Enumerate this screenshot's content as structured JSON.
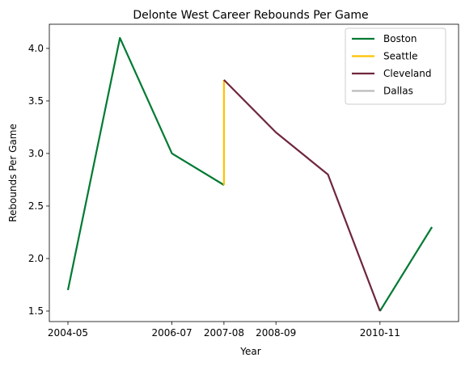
{
  "chart_data": {
    "type": "line",
    "title": "Delonte West Career Rebounds Per Game",
    "xlabel": "Year",
    "ylabel": "Rebounds Per Game",
    "x_categories": [
      "2004-05",
      "2005-06",
      "2006-07",
      "2007-08",
      "2008-09",
      "2009-10",
      "2010-11",
      "2011-12"
    ],
    "x_ticks": [
      "2004-05",
      "2006-07",
      "2007-08",
      "2008-09",
      "2010-11"
    ],
    "ylim": [
      1.4,
      4.23
    ],
    "y_ticks": [
      1.5,
      2.0,
      2.5,
      3.0,
      3.5,
      4.0
    ],
    "y_tick_labels": [
      "1.5",
      "2.0",
      "2.5",
      "3.0",
      "3.5",
      "4.0"
    ],
    "legend_position": "top-right",
    "grid": false,
    "series": [
      {
        "name": "Boston",
        "color": "#007a33",
        "segments": [
          [
            [
              "2004-05",
              1.7
            ],
            [
              "2005-06",
              4.1
            ],
            [
              "2006-07",
              3.0
            ],
            [
              "2007-08",
              2.7
            ]
          ],
          [
            [
              "2010-11",
              1.5
            ],
            [
              "2011-12",
              2.3
            ]
          ]
        ]
      },
      {
        "name": "Seattle",
        "color": "#ffc200",
        "segments": [
          [
            [
              "2007-08",
              2.7
            ],
            [
              "2007-08",
              3.7
            ]
          ]
        ]
      },
      {
        "name": "Cleveland",
        "color": "#6f263d",
        "segments": [
          [
            [
              "2007-08",
              3.7
            ],
            [
              "2008-09",
              3.2
            ],
            [
              "2009-10",
              2.8
            ],
            [
              "2010-11",
              1.5
            ]
          ]
        ]
      },
      {
        "name": "Dallas",
        "color": "#bbbbbb",
        "segments": []
      }
    ]
  }
}
